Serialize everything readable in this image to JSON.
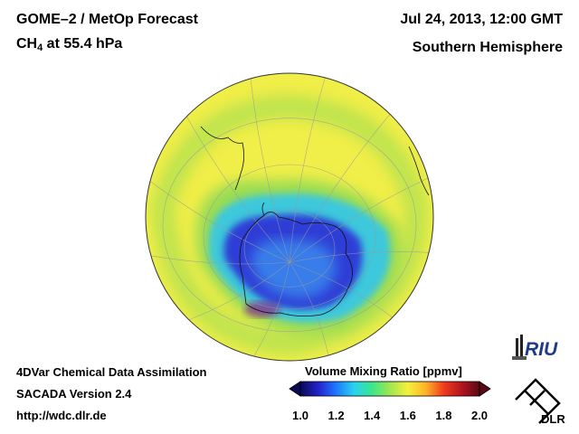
{
  "header": {
    "instrument": "GOME–2 / MetOp Forecast",
    "species": "CH",
    "species_sub": "4",
    "level": " at 55.4 hPa",
    "datetime": "Jul 24, 2013, 12:00 GMT",
    "hemisphere": "Southern Hemisphere"
  },
  "footer": {
    "line1": "4DVar Chemical Data Assimilation",
    "line2": "SACADA Version 2.4",
    "line3": "http://wdc.dlr.de"
  },
  "colorbar": {
    "title": "Volume Mixing Ratio [ppmv]",
    "ticks": [
      "1.0",
      "1.2",
      "1.4",
      "1.6",
      "1.8",
      "2.0"
    ],
    "colors": [
      "#0a0a55",
      "#2222cc",
      "#1e78ff",
      "#28d2f0",
      "#3ce68c",
      "#a0e650",
      "#f5f03c",
      "#ffb428",
      "#f03c1e",
      "#b4141e",
      "#5a0a14"
    ]
  },
  "map": {
    "field_colors": {
      "background": "#f0ee48",
      "ring_green": "#9adc52",
      "ring_cyan": "#3cc8dc",
      "vortex_blue": "#2e3ed6",
      "vortex_core": "#3a8ef0",
      "hot_spot": "#8a2a8a"
    }
  },
  "logos": {
    "riu": "RIU",
    "dlr": "DLR"
  }
}
